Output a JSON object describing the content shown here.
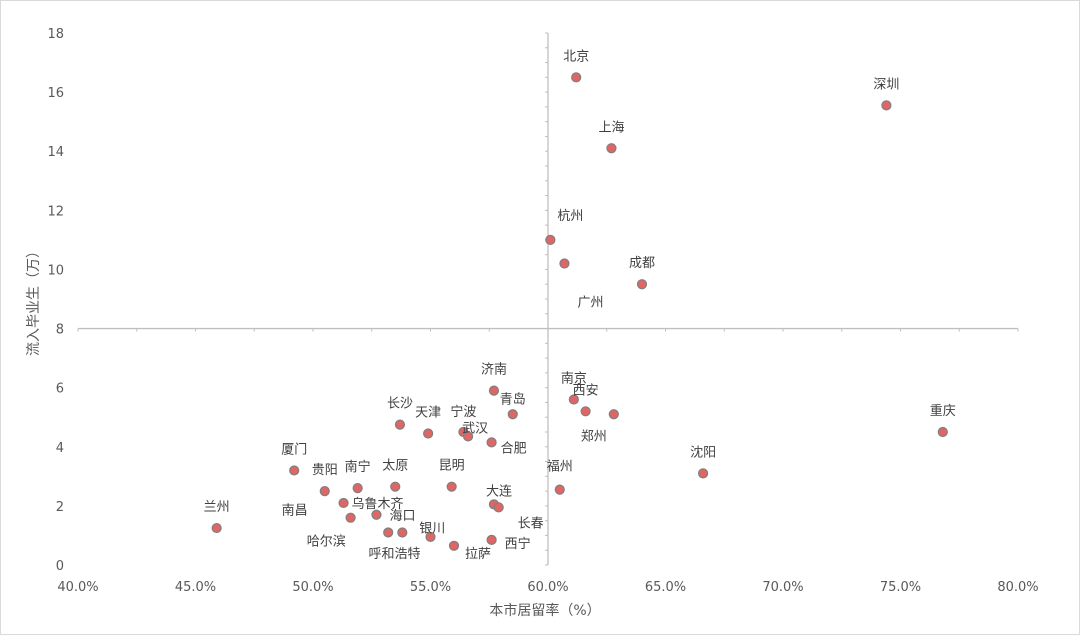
{
  "chart_data": {
    "type": "scatter",
    "title": "",
    "xlabel": "本市居留率（%）",
    "ylabel": "流入毕业生（万）",
    "xlim": [
      0.4,
      0.8
    ],
    "ylim": [
      0,
      18
    ],
    "x_ticks": [
      "40.0%",
      "45.0%",
      "50.0%",
      "55.0%",
      "60.0%",
      "65.0%",
      "70.0%",
      "75.0%",
      "80.0%"
    ],
    "y_ticks": [
      "0",
      "2",
      "4",
      "6",
      "8",
      "10",
      "12",
      "14",
      "16",
      "18"
    ],
    "crosshair": {
      "x": 0.6,
      "y": 8
    },
    "marker_fill": "#e06666",
    "marker_stroke": "#7f7f7f",
    "points": [
      {
        "name": "北京",
        "x": 0.612,
        "y": 16.5
      },
      {
        "name": "深圳",
        "x": 0.744,
        "y": 15.55
      },
      {
        "name": "上海",
        "x": 0.627,
        "y": 14.1
      },
      {
        "name": "杭州",
        "x": 0.601,
        "y": 11.0
      },
      {
        "name": "广州",
        "x": 0.607,
        "y": 10.2
      },
      {
        "name": "成都",
        "x": 0.64,
        "y": 9.5
      },
      {
        "name": "济南",
        "x": 0.577,
        "y": 5.9
      },
      {
        "name": "南京",
        "x": 0.611,
        "y": 5.6
      },
      {
        "name": "西安",
        "x": 0.616,
        "y": 5.2
      },
      {
        "name": "郑州",
        "x": 0.628,
        "y": 5.1
      },
      {
        "name": "青岛",
        "x": 0.585,
        "y": 5.1
      },
      {
        "name": "长沙",
        "x": 0.537,
        "y": 4.75
      },
      {
        "name": "天津",
        "x": 0.549,
        "y": 4.45
      },
      {
        "name": "宁波",
        "x": 0.564,
        "y": 4.5
      },
      {
        "name": "武汉",
        "x": 0.566,
        "y": 4.35
      },
      {
        "name": "合肥",
        "x": 0.576,
        "y": 4.15
      },
      {
        "name": "重庆",
        "x": 0.768,
        "y": 4.5
      },
      {
        "name": "厦门",
        "x": 0.492,
        "y": 3.2
      },
      {
        "name": "沈阳",
        "x": 0.666,
        "y": 3.1
      },
      {
        "name": "昆明",
        "x": 0.559,
        "y": 2.65
      },
      {
        "name": "太原",
        "x": 0.535,
        "y": 2.65
      },
      {
        "name": "南宁",
        "x": 0.519,
        "y": 2.6
      },
      {
        "name": "福州",
        "x": 0.605,
        "y": 2.55
      },
      {
        "name": "贵阳",
        "x": 0.505,
        "y": 2.5
      },
      {
        "name": "乌鲁木齐",
        "x": 0.513,
        "y": 2.1
      },
      {
        "name": "南昌",
        "x": 0.516,
        "y": 1.6
      },
      {
        "name": "大连",
        "x": 0.577,
        "y": 2.05
      },
      {
        "name": "长春",
        "x": 0.579,
        "y": 1.95
      },
      {
        "name": "海口",
        "x": 0.527,
        "y": 1.7
      },
      {
        "name": "哈尔滨",
        "x": 0.532,
        "y": 1.1
      },
      {
        "name": "银川",
        "x": 0.538,
        "y": 1.1
      },
      {
        "name": "呼和浩特",
        "x": 0.55,
        "y": 0.95
      },
      {
        "name": "拉萨",
        "x": 0.56,
        "y": 0.65
      },
      {
        "name": "西宁",
        "x": 0.576,
        "y": 0.85
      },
      {
        "name": "兰州",
        "x": 0.459,
        "y": 1.25
      }
    ]
  }
}
